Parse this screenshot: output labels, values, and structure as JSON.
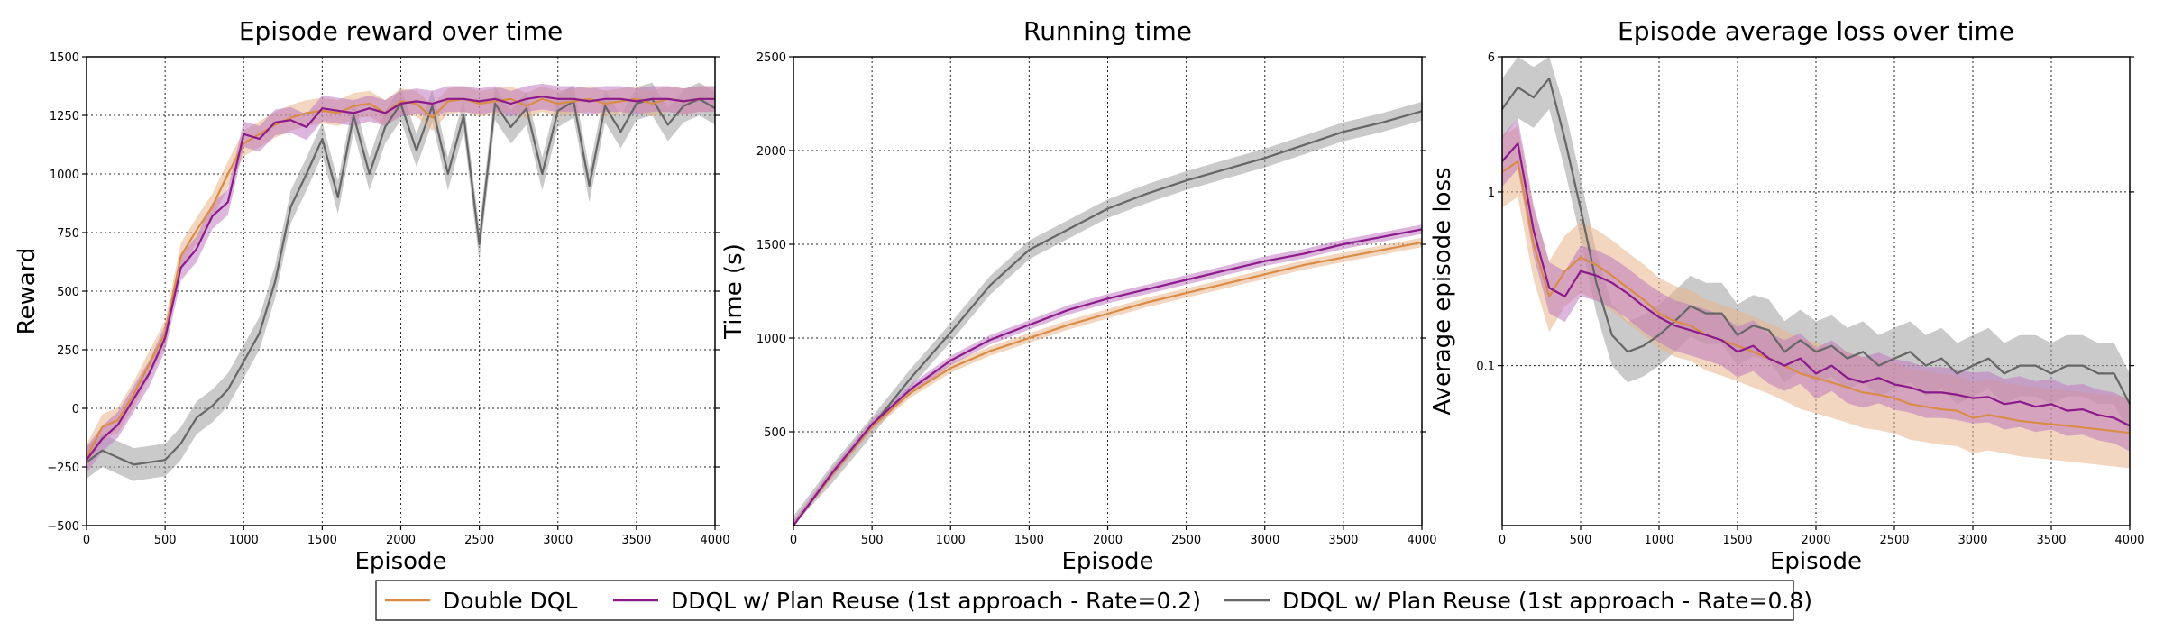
{
  "chart_data": [
    {
      "type": "line",
      "title": "Episode reward over time",
      "xlabel": "Episode",
      "ylabel": "Reward",
      "xlim": [
        0,
        4000
      ],
      "ylim": [
        -500,
        1500
      ],
      "yscale": "linear",
      "xticks": [
        0,
        500,
        1000,
        1500,
        2000,
        2500,
        3000,
        3500,
        4000
      ],
      "yticks": [
        -500,
        -250,
        0,
        250,
        500,
        750,
        1000,
        1250,
        1500
      ],
      "ytick_labels": [
        "−500",
        "−250",
        "0",
        "250",
        "500",
        "750",
        "1000",
        "1250",
        "1500"
      ],
      "grid": true,
      "x": [
        0,
        100,
        200,
        300,
        400,
        500,
        600,
        700,
        800,
        900,
        1000,
        1100,
        1200,
        1300,
        1400,
        1500,
        1600,
        1700,
        1800,
        1900,
        2000,
        2100,
        2200,
        2300,
        2400,
        2500,
        2600,
        2700,
        2800,
        2900,
        3000,
        3100,
        3200,
        3300,
        3400,
        3500,
        3600,
        3700,
        3800,
        3900,
        4000
      ],
      "series": [
        {
          "name": "Double DQL",
          "values": [
            -210,
            -80,
            -50,
            60,
            190,
            320,
            650,
            760,
            860,
            1000,
            1130,
            1170,
            1210,
            1240,
            1260,
            1270,
            1260,
            1290,
            1300,
            1260,
            1310,
            1300,
            1240,
            1310,
            1320,
            1300,
            1310,
            1320,
            1290,
            1320,
            1300,
            1310,
            1320,
            1300,
            1310,
            1320,
            1300,
            1320,
            1310,
            1320,
            1320
          ],
          "band": 55
        },
        {
          "name": "DDQL w/ Plan Reuse (1st approach - Rate=0.2)",
          "values": [
            -220,
            -130,
            -70,
            40,
            150,
            300,
            600,
            680,
            820,
            880,
            1170,
            1150,
            1220,
            1230,
            1200,
            1280,
            1270,
            1260,
            1280,
            1260,
            1300,
            1310,
            1300,
            1320,
            1320,
            1310,
            1320,
            1300,
            1320,
            1330,
            1320,
            1320,
            1310,
            1320,
            1320,
            1310,
            1320,
            1320,
            1310,
            1320,
            1320
          ],
          "band": 55
        },
        {
          "name": "DDQL w/ Plan Reuse (1st approach - Rate=0.8)",
          "values": [
            -230,
            -180,
            -210,
            -240,
            -230,
            -220,
            -150,
            -40,
            10,
            80,
            200,
            320,
            540,
            860,
            1000,
            1150,
            900,
            1250,
            1000,
            1200,
            1300,
            1100,
            1290,
            1000,
            1250,
            700,
            1300,
            1200,
            1280,
            1000,
            1270,
            1310,
            950,
            1290,
            1180,
            1300,
            1320,
            1210,
            1290,
            1320,
            1280
          ],
          "band": 70
        }
      ],
      "legend_position": "bottom-center"
    },
    {
      "type": "line",
      "title": "Running time",
      "xlabel": "Episode",
      "ylabel": "Time (s)",
      "xlim": [
        0,
        4000
      ],
      "ylim": [
        0,
        2500
      ],
      "yscale": "linear",
      "xticks": [
        0,
        500,
        1000,
        1500,
        2000,
        2500,
        3000,
        3500,
        4000
      ],
      "yticks": [
        500,
        1000,
        1500,
        2000,
        2500
      ],
      "ytick_labels": [
        "500",
        "1000",
        "1500",
        "2000",
        "2500"
      ],
      "grid": true,
      "x": [
        0,
        250,
        500,
        750,
        1000,
        1250,
        1500,
        1750,
        2000,
        2250,
        2500,
        2750,
        3000,
        3250,
        3500,
        3750,
        4000
      ],
      "series": [
        {
          "name": "Double DQL",
          "values": [
            0,
            280,
            530,
            710,
            840,
            930,
            1000,
            1070,
            1130,
            1190,
            1240,
            1290,
            1340,
            1390,
            1430,
            1470,
            1510
          ],
          "band": 25
        },
        {
          "name": "DDQL w/ Plan Reuse (1st approach - Rate=0.2)",
          "values": [
            0,
            285,
            540,
            730,
            880,
            990,
            1070,
            1150,
            1210,
            1260,
            1310,
            1360,
            1410,
            1450,
            1500,
            1540,
            1580
          ],
          "band": 25
        },
        {
          "name": "DDQL w/ Plan Reuse (1st approach - Rate=0.8)",
          "values": [
            0,
            280,
            530,
            790,
            1030,
            1280,
            1470,
            1580,
            1690,
            1770,
            1840,
            1900,
            1960,
            2030,
            2100,
            2150,
            2210
          ],
          "band": 50
        }
      ],
      "legend_position": "bottom-center"
    },
    {
      "type": "line",
      "title": "Episode average loss over time",
      "xlabel": "Episode",
      "ylabel": "Average episode loss",
      "xlim": [
        0,
        4000
      ],
      "ylim": [
        0.012,
        6
      ],
      "yscale": "log",
      "xticks": [
        0,
        500,
        1000,
        1500,
        2000,
        2500,
        3000,
        3500,
        4000
      ],
      "yticks": [
        0.1,
        1,
        6
      ],
      "ytick_labels": [
        "0.1",
        "1",
        "6"
      ],
      "grid": true,
      "x": [
        0,
        100,
        200,
        300,
        400,
        500,
        600,
        700,
        800,
        900,
        1000,
        1100,
        1200,
        1300,
        1400,
        1500,
        1600,
        1700,
        1800,
        1900,
        2000,
        2100,
        2200,
        2300,
        2400,
        2500,
        2600,
        2700,
        2800,
        2900,
        3000,
        3100,
        3200,
        3300,
        3400,
        3500,
        3600,
        3700,
        3800,
        3900,
        4000
      ],
      "series": [
        {
          "name": "Double DQL",
          "values": [
            1.3,
            1.5,
            0.5,
            0.25,
            0.35,
            0.42,
            0.38,
            0.33,
            0.28,
            0.24,
            0.2,
            0.18,
            0.17,
            0.15,
            0.14,
            0.13,
            0.12,
            0.11,
            0.1,
            0.09,
            0.085,
            0.08,
            0.075,
            0.07,
            0.068,
            0.065,
            0.06,
            0.058,
            0.056,
            0.055,
            0.05,
            0.052,
            0.05,
            0.048,
            0.047,
            0.046,
            0.045,
            0.044,
            0.043,
            0.042,
            0.041
          ],
          "band_factor": 1.6
        },
        {
          "name": "DDQL w/ Plan Reuse (1st approach - Rate=0.2)",
          "values": [
            1.5,
            1.9,
            0.6,
            0.28,
            0.25,
            0.35,
            0.33,
            0.3,
            0.26,
            0.22,
            0.19,
            0.17,
            0.16,
            0.15,
            0.14,
            0.12,
            0.13,
            0.11,
            0.1,
            0.11,
            0.09,
            0.1,
            0.085,
            0.08,
            0.085,
            0.078,
            0.075,
            0.07,
            0.07,
            0.068,
            0.065,
            0.066,
            0.06,
            0.062,
            0.058,
            0.06,
            0.055,
            0.056,
            0.052,
            0.05,
            0.045
          ],
          "band_factor": 1.4
        },
        {
          "name": "DDQL w/ Plan Reuse (1st approach - Rate=0.8)",
          "values": [
            3.0,
            4.0,
            3.5,
            4.5,
            2.0,
            0.8,
            0.3,
            0.15,
            0.12,
            0.13,
            0.15,
            0.18,
            0.22,
            0.2,
            0.2,
            0.15,
            0.17,
            0.16,
            0.12,
            0.14,
            0.12,
            0.13,
            0.11,
            0.12,
            0.1,
            0.11,
            0.12,
            0.1,
            0.11,
            0.09,
            0.1,
            0.11,
            0.09,
            0.1,
            0.1,
            0.09,
            0.1,
            0.1,
            0.09,
            0.09,
            0.06
          ],
          "band_factor": 1.5
        }
      ],
      "legend_position": "bottom-center"
    }
  ],
  "legend": [
    {
      "label": "Double DQL",
      "color": "#D98C45"
    },
    {
      "label": "DDQL w/ Plan Reuse (1st approach - Rate=0.2)",
      "color": "#8B1A8B"
    },
    {
      "label": "DDQL w/ Plan Reuse (1st approach - Rate=0.8)",
      "color": "#666666"
    }
  ],
  "colors": {
    "series": [
      "#D98C45",
      "#8B1A8B",
      "#666666"
    ],
    "bands": [
      "#E8B58A",
      "#C07AC0",
      "#9E9E9E"
    ]
  }
}
